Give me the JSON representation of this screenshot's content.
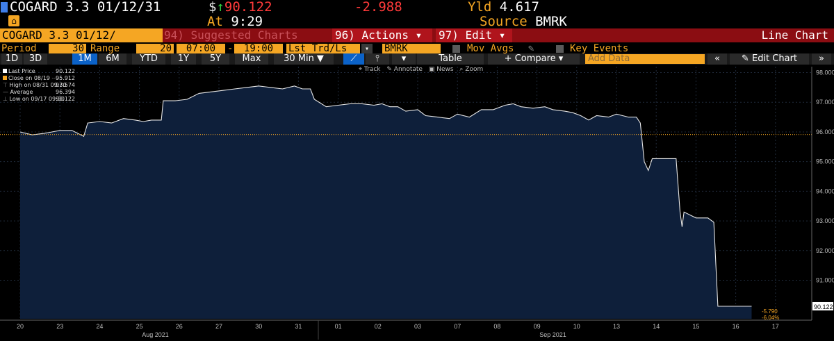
{
  "header": {
    "ticker": "COGARD 3.3 01/12/31",
    "currency_symbol": "$",
    "price": "90.122",
    "change": "-2.988",
    "yld_label": "Yld",
    "yld_value": "4.617",
    "at_label": "At",
    "at_value": "9:29",
    "source_label": "Source",
    "source_value": "BMRK"
  },
  "menubar": {
    "security": "COGARD 3.3 01/12/",
    "suggested": "94) Suggested Charts",
    "actions": "96) Actions ▾",
    "edit": "97) Edit ▾",
    "chart_type": "Line Chart"
  },
  "settings": {
    "period_label": "Period",
    "period_value": "30",
    "range_label": "Range",
    "range_value": "20",
    "time_from": "07:00",
    "time_sep": "-",
    "time_to": "19:00",
    "trade_type": "Lst Trd/Ls",
    "source": "BMRK",
    "mov_avgs": "Mov Avgs",
    "key_events": "Key Events"
  },
  "tabs": {
    "items": [
      "1D",
      "3D",
      "1M",
      "6M",
      "YTD",
      "1Y",
      "5Y",
      "Max",
      "30 Min ▼"
    ],
    "active": "1M",
    "table": "Table",
    "compare": "+ Compare ▾",
    "add_data": "Add Data",
    "collapse": "«",
    "edit_chart": "Edit Chart",
    "expand": "»"
  },
  "toolbar": {
    "track": "Track",
    "annotate": "Annotate",
    "news": "News",
    "zoom": "Zoom"
  },
  "legend": {
    "last_price_label": "Last Price",
    "last_price": "90.122",
    "close_label": "Close on 08/19",
    "close": "95.912",
    "high_label": "High on 08/31 09:30",
    "high": "97.574",
    "avg_label": "Average",
    "avg": "96.394",
    "low_label": "Low on 09/17 09:00",
    "low": "90.122"
  },
  "colors": {
    "accent_orange": "#f5a623",
    "menu_red": "#8b0d12",
    "price_red": "#ff3a3a",
    "chart_fill": "#0e1f3a",
    "line": "#e6e6e6",
    "close_line": "#f5a623"
  },
  "chart_data": {
    "type": "area",
    "x": [
      "20",
      "23",
      "24",
      "25",
      "26",
      "27",
      "30",
      "31",
      "01",
      "02",
      "03",
      "07",
      "08",
      "09",
      "10",
      "13",
      "14",
      "15",
      "16",
      "17"
    ],
    "month_labels": [
      "Aug 2021",
      "Sep 2021"
    ],
    "yticks": [
      "98.000",
      "97.000",
      "96.000",
      "95.000",
      "94.000",
      "93.000",
      "92.000",
      "91.000"
    ],
    "ylim": [
      89.7,
      98.2
    ],
    "close_line": 95.912,
    "last_label": "90.122",
    "chg_abs": "-5.790",
    "chg_pct": "-6.04%",
    "series": [
      {
        "values": [
          [
            0,
            96.0
          ],
          [
            0.3,
            95.9
          ],
          [
            0.6,
            95.95
          ],
          [
            0.8,
            96.0
          ],
          [
            1.0,
            96.05
          ],
          [
            1.3,
            96.05
          ],
          [
            1.6,
            95.85
          ],
          [
            1.7,
            96.3
          ],
          [
            2.0,
            96.35
          ],
          [
            2.3,
            96.3
          ],
          [
            2.6,
            96.45
          ],
          [
            2.9,
            96.4
          ],
          [
            3.1,
            96.35
          ],
          [
            3.3,
            96.4
          ],
          [
            3.55,
            96.4
          ],
          [
            3.6,
            97.05
          ],
          [
            3.9,
            97.05
          ],
          [
            4.2,
            97.1
          ],
          [
            4.5,
            97.3
          ],
          [
            4.8,
            97.35
          ],
          [
            5.1,
            97.4
          ],
          [
            5.4,
            97.45
          ],
          [
            5.7,
            97.5
          ],
          [
            6.0,
            97.55
          ],
          [
            6.3,
            97.5
          ],
          [
            6.6,
            97.45
          ],
          [
            6.9,
            97.55
          ],
          [
            7.1,
            97.45
          ],
          [
            7.3,
            97.45
          ],
          [
            7.4,
            97.1
          ],
          [
            7.7,
            96.85
          ],
          [
            8.0,
            96.9
          ],
          [
            8.3,
            96.95
          ],
          [
            8.6,
            96.95
          ],
          [
            8.9,
            96.9
          ],
          [
            9.1,
            96.95
          ],
          [
            9.3,
            96.85
          ],
          [
            9.5,
            96.85
          ],
          [
            9.7,
            96.7
          ],
          [
            10.0,
            96.75
          ],
          [
            10.2,
            96.55
          ],
          [
            10.5,
            96.5
          ],
          [
            10.8,
            96.45
          ],
          [
            11.0,
            96.6
          ],
          [
            11.3,
            96.5
          ],
          [
            11.6,
            96.75
          ],
          [
            11.9,
            96.75
          ],
          [
            12.2,
            96.9
          ],
          [
            12.4,
            96.95
          ],
          [
            12.6,
            96.85
          ],
          [
            12.9,
            96.8
          ],
          [
            13.2,
            96.85
          ],
          [
            13.4,
            96.75
          ],
          [
            13.7,
            96.7
          ],
          [
            13.9,
            96.65
          ],
          [
            14.1,
            96.55
          ],
          [
            14.3,
            96.4
          ],
          [
            14.5,
            96.55
          ],
          [
            14.8,
            96.5
          ],
          [
            15.0,
            96.6
          ],
          [
            15.3,
            96.5
          ],
          [
            15.5,
            96.5
          ],
          [
            15.6,
            96.3
          ],
          [
            15.7,
            95.0
          ],
          [
            15.8,
            94.7
          ],
          [
            15.9,
            95.1
          ],
          [
            16.2,
            95.1
          ],
          [
            16.5,
            95.1
          ],
          [
            16.6,
            93.3
          ],
          [
            16.65,
            92.8
          ],
          [
            16.7,
            93.3
          ],
          [
            17.0,
            93.1
          ],
          [
            17.3,
            93.1
          ],
          [
            17.45,
            92.95
          ],
          [
            17.55,
            90.122
          ],
          [
            18.4,
            90.122
          ]
        ]
      }
    ]
  }
}
